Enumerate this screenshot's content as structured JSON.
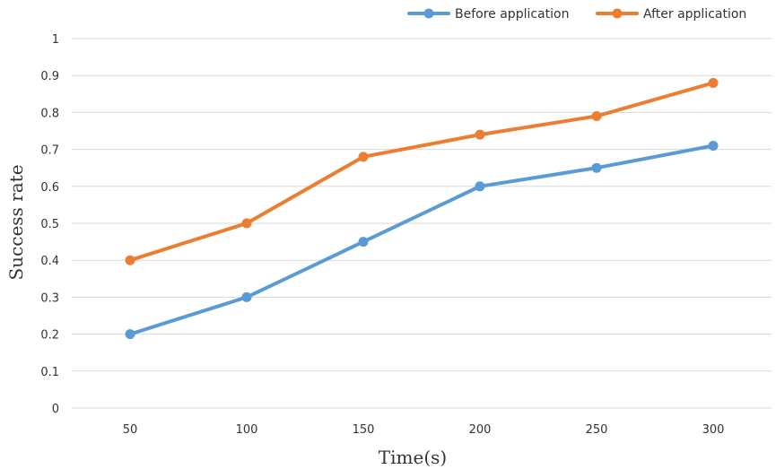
{
  "chart_data": {
    "type": "line",
    "xlabel": "Time(s)",
    "ylabel": "Success rate",
    "categories": [
      "50",
      "100",
      "150",
      "200",
      "250",
      "300"
    ],
    "yticks": [
      "0",
      "0.1",
      "0.2",
      "0.3",
      "0.4",
      "0.5",
      "0.6",
      "0.7",
      "0.8",
      "0.9",
      "1"
    ],
    "ylim": [
      0,
      1
    ],
    "grid": true,
    "legend_position": "top-right",
    "series": [
      {
        "name": "Before application",
        "color": "#5b9bd5",
        "values": [
          0.2,
          0.3,
          0.45,
          0.6,
          0.65,
          0.71
        ]
      },
      {
        "name": "After application",
        "color": "#ed7d31",
        "values": [
          0.4,
          0.5,
          0.68,
          0.74,
          0.79,
          0.88
        ]
      }
    ]
  }
}
